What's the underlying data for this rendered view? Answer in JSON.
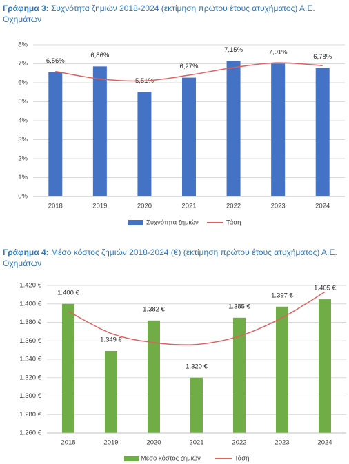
{
  "chart_data": [
    {
      "type": "bar",
      "caption_label": "Γράφημα 3:",
      "title": "Συχνότητα ζημιών 2018-2024 (εκτίμηση πρώτου έτους ατυχήματος) Α.Ε. Οχημάτων",
      "categories": [
        "2018",
        "2019",
        "2020",
        "2021",
        "2022",
        "2023",
        "2024"
      ],
      "series": [
        {
          "name": "Συχνότητα ζημιών",
          "color": "#4472c4",
          "values": [
            6.56,
            6.86,
            5.51,
            6.27,
            7.15,
            7.01,
            6.78
          ],
          "value_labels": [
            "6,56%",
            "6,86%",
            "5,51%",
            "6,27%",
            "7,15%",
            "7,01%",
            "6,78%"
          ]
        },
        {
          "name": "Τάση",
          "type": "line",
          "color": "#e06060",
          "values": [
            6.6,
            6.2,
            6.1,
            6.4,
            6.8,
            7.05,
            6.9
          ]
        }
      ],
      "ylim": [
        0,
        8
      ],
      "yticks": [
        {
          "value": 0,
          "label": "0%"
        },
        {
          "value": 1,
          "label": "1%"
        },
        {
          "value": 2,
          "label": "2%"
        },
        {
          "value": 3,
          "label": "3%"
        },
        {
          "value": 4,
          "label": "4%"
        },
        {
          "value": 5,
          "label": "5%"
        },
        {
          "value": 6,
          "label": "6%"
        },
        {
          "value": 7,
          "label": "7%"
        },
        {
          "value": 8,
          "label": "8%"
        }
      ],
      "grid": true
    },
    {
      "type": "bar",
      "caption_label": "Γράφημα 4:",
      "title": "Μέσο κόστος ζημιών 2018-2024 (€) (εκτίμηση πρώτου έτους ατυχήματος) Α.Ε. Οχημάτων",
      "categories": [
        "2018",
        "2019",
        "2020",
        "2021",
        "2022",
        "2023",
        "2024"
      ],
      "series": [
        {
          "name": "Μέσο κόστος ζημιών",
          "color": "#70ad47",
          "values": [
            1400,
            1349,
            1382,
            1320,
            1385,
            1397,
            1405
          ],
          "value_labels": [
            "1.400 €",
            "1.349 €",
            "1.382 €",
            "1.320 €",
            "1.385 €",
            "1.397 €",
            "1.405 €"
          ]
        },
        {
          "name": "Τάση",
          "type": "line",
          "color": "#e06060",
          "values": [
            1392,
            1368,
            1358,
            1356,
            1365,
            1385,
            1413
          ]
        }
      ],
      "ylim": [
        1260,
        1420
      ],
      "yticks": [
        {
          "value": 1260,
          "label": "1.260 €"
        },
        {
          "value": 1280,
          "label": "1.280 €"
        },
        {
          "value": 1300,
          "label": "1.300 €"
        },
        {
          "value": 1320,
          "label": "1.320 €"
        },
        {
          "value": 1340,
          "label": "1.340 €"
        },
        {
          "value": 1360,
          "label": "1.360 €"
        },
        {
          "value": 1380,
          "label": "1.380 €"
        },
        {
          "value": 1400,
          "label": "1.400 €"
        },
        {
          "value": 1420,
          "label": "1.420 €"
        }
      ],
      "grid": true
    }
  ]
}
